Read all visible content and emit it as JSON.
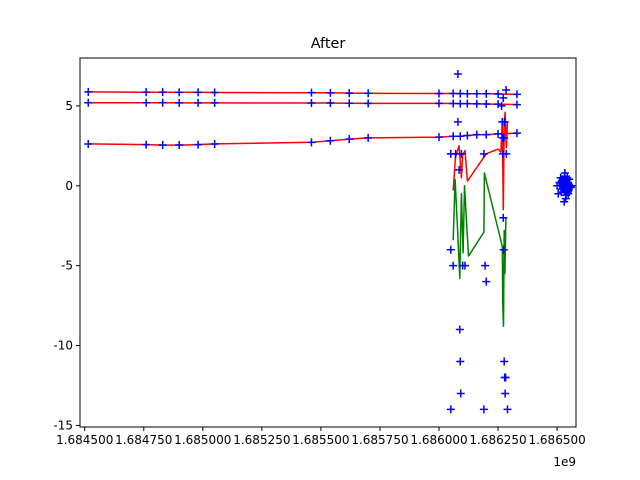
{
  "chart_data": {
    "type": "line",
    "title": "After",
    "xlabel": "",
    "ylabel": "",
    "x_offset_label": "1e9",
    "xlim": [
      1684480000,
      1686580000
    ],
    "ylim": [
      -15.1,
      8.0
    ],
    "grid": false,
    "x_ticks": [
      {
        "value": 1684500000,
        "label": "1.684500"
      },
      {
        "value": 1684750000,
        "label": "1.684750"
      },
      {
        "value": 1685000000,
        "label": "1.685000"
      },
      {
        "value": 1685250000,
        "label": "1.685250"
      },
      {
        "value": 1685500000,
        "label": "1.685500"
      },
      {
        "value": 1685750000,
        "label": "1.685750"
      },
      {
        "value": 1686000000,
        "label": "1.686000"
      },
      {
        "value": 1686250000,
        "label": "1.686250"
      },
      {
        "value": 1686500000,
        "label": "1.686500"
      }
    ],
    "y_ticks": [
      {
        "value": 5,
        "label": "5"
      },
      {
        "value": 0,
        "label": "0"
      },
      {
        "value": -5,
        "label": "-5"
      },
      {
        "value": -10,
        "label": "-10"
      },
      {
        "value": -15,
        "label": "-15"
      }
    ],
    "series": [
      {
        "color": "#ff0000",
        "style": "line",
        "x": [
          1684515000,
          1684760000,
          1684830000,
          1684900000,
          1684980000,
          1685050000,
          1685460000,
          1685540000,
          1685620000,
          1685700000,
          1686000000,
          1686060000,
          1686090000,
          1686120000,
          1686160000,
          1686200000,
          1686250000,
          1686330000
        ],
        "y": [
          5.88,
          5.86,
          5.86,
          5.85,
          5.85,
          5.84,
          5.83,
          5.82,
          5.8,
          5.79,
          5.78,
          5.78,
          5.77,
          5.76,
          5.76,
          5.76,
          5.75,
          5.72
        ]
      },
      {
        "color": "#ff0000",
        "style": "line",
        "x": [
          1684515000,
          1684760000,
          1684830000,
          1684900000,
          1684980000,
          1685050000,
          1685460000,
          1685540000,
          1685620000,
          1685700000,
          1686000000,
          1686060000,
          1686090000,
          1686120000,
          1686160000,
          1686200000,
          1686250000,
          1686330000
        ],
        "y": [
          5.2,
          5.2,
          5.2,
          5.19,
          5.19,
          5.19,
          5.18,
          5.18,
          5.17,
          5.16,
          5.16,
          5.15,
          5.14,
          5.14,
          5.13,
          5.12,
          5.11,
          5.08
        ]
      },
      {
        "color": "#ff0000",
        "style": "line",
        "x": [
          1684515000,
          1684760000,
          1684830000,
          1684900000,
          1684980000,
          1685050000,
          1685460000,
          1685540000,
          1685620000,
          1685700000,
          1686000000,
          1686060000,
          1686090000,
          1686120000,
          1686160000,
          1686200000,
          1686250000,
          1686330000
        ],
        "y": [
          2.62,
          2.58,
          2.55,
          2.55,
          2.58,
          2.62,
          2.72,
          2.82,
          2.92,
          3.0,
          3.05,
          3.1,
          3.1,
          3.15,
          3.2,
          3.2,
          3.25,
          3.3
        ]
      },
      {
        "color": "#ff0000",
        "style": "line",
        "x": [
          1686060000,
          1686070000,
          1686085000,
          1686095000,
          1686100000,
          1686110000,
          1686120000,
          1686130000,
          1686200000,
          1686250000,
          1686262000,
          1686268000,
          1686272000,
          1686276000,
          1686280000,
          1686285000,
          1686290000
        ],
        "y": [
          -0.3,
          1.8,
          2.5,
          0.5,
          1.9,
          2.2,
          0.3,
          0.5,
          2.0,
          2.3,
          2.1,
          4.1,
          -1.5,
          3.9,
          4.6,
          2.4,
          4.0
        ]
      },
      {
        "color": "#008000",
        "style": "line",
        "x": [
          1686060000,
          1686068000,
          1686078000,
          1686088000,
          1686095000,
          1686102000,
          1686108000,
          1686125000,
          1686190000,
          1686192000,
          1686268000,
          1686270000,
          1686273000,
          1686276000,
          1686279000,
          1686283000
        ],
        "y": [
          -3.4,
          0.4,
          -2.5,
          -5.8,
          -0.5,
          -4.2,
          0.0,
          -4.4,
          -2.9,
          0.8,
          -3.8,
          -7.5,
          -8.8,
          -2.8,
          -5.5,
          -2.0
        ]
      },
      {
        "color": "#0000ff",
        "style": "markers",
        "x": [
          1684515000,
          1684515000,
          1684515000,
          1684760000,
          1684760000,
          1684760000,
          1684830000,
          1684830000,
          1684830000,
          1684900000,
          1684900000,
          1684900000,
          1684980000,
          1684980000,
          1684980000,
          1685050000,
          1685050000,
          1685050000,
          1685460000,
          1685460000,
          1685460000,
          1685540000,
          1685540000,
          1685540000,
          1685620000,
          1685620000,
          1685620000,
          1685700000,
          1685700000,
          1685700000,
          1686000000,
          1686000000,
          1686000000,
          1686060000,
          1686060000,
          1686060000,
          1686090000,
          1686090000,
          1686090000,
          1686120000,
          1686120000,
          1686120000,
          1686160000,
          1686160000,
          1686160000,
          1686200000,
          1686200000,
          1686200000,
          1686250000,
          1686250000,
          1686250000,
          1686330000,
          1686330000,
          1686330000,
          1686050000,
          1686050000,
          1686080000,
          1686080000,
          1686085000,
          1686088000,
          1686090000,
          1686092000,
          1686095000,
          1686100000,
          1686110000,
          1686050000,
          1686070000,
          1686190000,
          1686195000,
          1686200000,
          1686190000,
          1686265000,
          1686268000,
          1686270000,
          1686272000,
          1686274000,
          1686276000,
          1686278000,
          1686280000,
          1686282000,
          1686284000,
          1686270000,
          1686272000,
          1686275000,
          1686278000,
          1686285000,
          1686060000,
          1686290000
        ],
        "y": [
          5.88,
          5.2,
          2.62,
          5.86,
          5.2,
          2.58,
          5.86,
          5.2,
          2.55,
          5.85,
          5.19,
          2.55,
          5.85,
          5.19,
          2.58,
          5.84,
          5.19,
          2.62,
          5.83,
          5.18,
          2.72,
          5.82,
          5.18,
          2.82,
          5.8,
          5.17,
          2.92,
          5.79,
          5.16,
          3.0,
          5.78,
          5.16,
          3.05,
          5.78,
          5.15,
          3.1,
          5.77,
          5.14,
          3.1,
          5.76,
          5.14,
          3.15,
          5.76,
          5.13,
          3.2,
          5.76,
          5.12,
          3.2,
          5.75,
          5.11,
          3.25,
          5.72,
          5.08,
          3.3,
          2.0,
          -4.0,
          7.0,
          4.0,
          1.0,
          -9.0,
          -11.0,
          -13.0,
          2.0,
          -5.0,
          -5.0,
          -14.0,
          2.0,
          2.0,
          -5.0,
          -6.0,
          -14.0,
          5.0,
          4.0,
          3.0,
          -2.0,
          -4.0,
          -11.0,
          -12.0,
          -13.0,
          -12.0,
          6.0,
          2.0,
          5.5,
          3.0,
          4.0,
          2.0,
          -5.0,
          -14.0
        ]
      },
      {
        "color": "#0000ff",
        "style": "markers",
        "x": [
          1686500000,
          1686510000,
          1686520000,
          1686525000,
          1686530000,
          1686535000,
          1686540000,
          1686545000,
          1686550000,
          1686555000,
          1686560000,
          1686505000,
          1686515000,
          1686522000,
          1686528000,
          1686532000,
          1686538000,
          1686542000,
          1686548000,
          1686552000,
          1686558000,
          1686512000,
          1686518000,
          1686527000,
          1686533000,
          1686537000,
          1686543000,
          1686547000,
          1686530000,
          1686535000,
          1686540000,
          1686525000,
          1686545000,
          1686520000,
          1686550000
        ],
        "y": [
          0.0,
          0.2,
          -0.2,
          0.4,
          -0.3,
          0.0,
          0.3,
          -0.4,
          0.1,
          -0.1,
          0.0,
          -0.5,
          0.5,
          0.1,
          -0.2,
          0.6,
          -0.6,
          0.2,
          -0.3,
          0.4,
          -0.1,
          0.0,
          -0.4,
          0.3,
          0.8,
          -0.8,
          0.5,
          -0.5,
          -1.0,
          0.0,
          0.2,
          -0.1,
          0.1,
          0.3,
          -0.2
        ]
      }
    ]
  }
}
